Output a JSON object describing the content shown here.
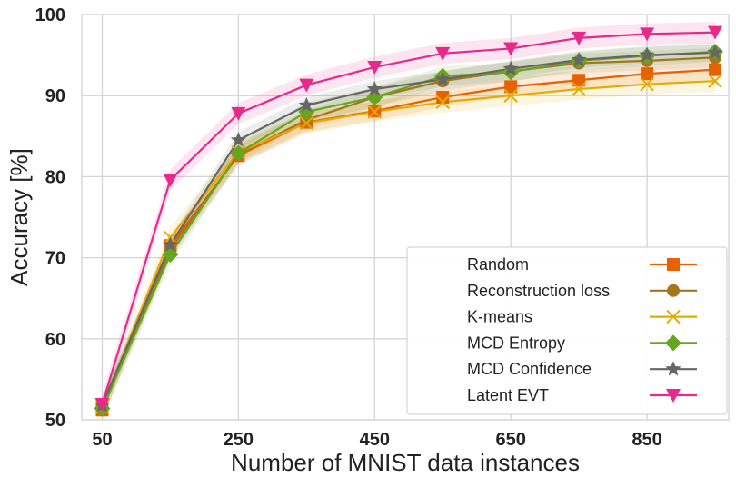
{
  "chart_data": {
    "type": "line",
    "title": "",
    "xlabel": "Number of MNIST data instances",
    "ylabel": "Accuracy [%]",
    "x": [
      50,
      150,
      250,
      350,
      450,
      550,
      650,
      750,
      850,
      950
    ],
    "xticks": [
      50,
      250,
      450,
      650,
      850
    ],
    "yticks": [
      50,
      60,
      70,
      80,
      90,
      100
    ],
    "xlim": [
      20,
      970
    ],
    "ylim": [
      50,
      100
    ],
    "grid": true,
    "legend_position": "bottom-right",
    "series": [
      {
        "name": "Random",
        "color": "#e66100",
        "marker": "square",
        "values": [
          51.2,
          71.5,
          82.6,
          86.7,
          88.1,
          89.8,
          91.1,
          91.9,
          92.7,
          93.2
        ],
        "band": 1.2
      },
      {
        "name": "Reconstruction loss",
        "color": "#a6761d",
        "marker": "circle",
        "values": [
          51.5,
          71.0,
          82.8,
          87.0,
          89.8,
          91.8,
          93.0,
          94.0,
          94.3,
          94.7
        ],
        "band": 1.2
      },
      {
        "name": "K-means",
        "color": "#e6ab02",
        "marker": "x",
        "values": [
          51.6,
          72.5,
          83.0,
          86.6,
          88.0,
          89.2,
          90.0,
          90.8,
          91.4,
          91.8
        ],
        "band": 1.3
      },
      {
        "name": "MCD Entropy",
        "color": "#66a61e",
        "marker": "diamond",
        "values": [
          51.4,
          70.4,
          82.9,
          88.0,
          89.8,
          92.4,
          92.9,
          94.3,
          94.9,
          95.4
        ],
        "band": 1.2
      },
      {
        "name": "MCD Confidence",
        "color": "#666666",
        "marker": "star",
        "values": [
          51.8,
          71.6,
          84.5,
          88.8,
          90.8,
          92.0,
          93.3,
          94.4,
          95.0,
          95.3
        ],
        "band": 1.0
      },
      {
        "name": "Latent EVT",
        "color": "#e7298a",
        "marker": "triangle-down",
        "values": [
          51.9,
          79.6,
          87.8,
          91.3,
          93.5,
          95.2,
          95.8,
          97.1,
          97.6,
          97.8
        ],
        "band": 1.3
      }
    ]
  }
}
